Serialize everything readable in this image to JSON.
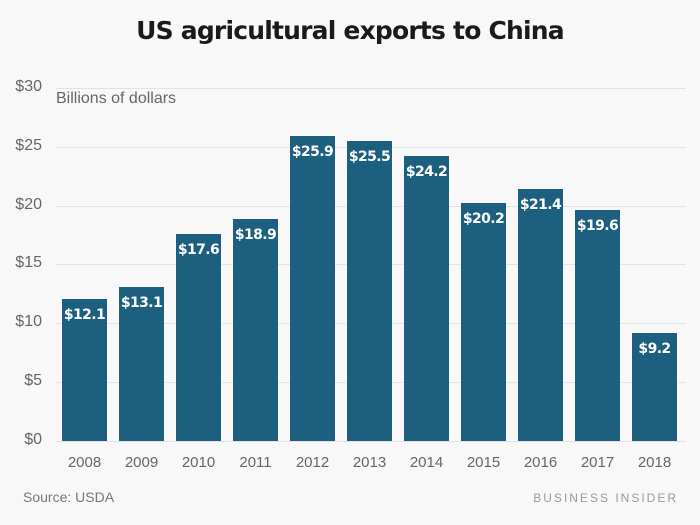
{
  "title": "US agricultural exports to China",
  "unit_label": "Billions of dollars",
  "source": "Source: USDA",
  "brand": "BUSINESS INSIDER",
  "colors": {
    "bar": "#1c5f7e",
    "background": "#f8f8f8",
    "grid": "#e3e3e3"
  },
  "y_ticks": [
    "$0",
    "$5",
    "$10",
    "$15",
    "$20",
    "$25",
    "$30"
  ],
  "bars": [
    {
      "year": "2008",
      "value": 12.1,
      "label": "$12.1"
    },
    {
      "year": "2009",
      "value": 13.1,
      "label": "$13.1"
    },
    {
      "year": "2010",
      "value": 17.6,
      "label": "$17.6"
    },
    {
      "year": "2011",
      "value": 18.9,
      "label": "$18.9"
    },
    {
      "year": "2012",
      "value": 25.9,
      "label": "$25.9"
    },
    {
      "year": "2013",
      "value": 25.5,
      "label": "$25.5"
    },
    {
      "year": "2014",
      "value": 24.2,
      "label": "$24.2"
    },
    {
      "year": "2015",
      "value": 20.2,
      "label": "$20.2"
    },
    {
      "year": "2016",
      "value": 21.4,
      "label": "$21.4"
    },
    {
      "year": "2017",
      "value": 19.6,
      "label": "$19.6"
    },
    {
      "year": "2018",
      "value": 9.2,
      "label": "$9.2"
    }
  ],
  "chart_data": {
    "type": "bar",
    "title": "US agricultural exports to China",
    "subtitle": "Billions of dollars",
    "categories": [
      "2008",
      "2009",
      "2010",
      "2011",
      "2012",
      "2013",
      "2014",
      "2015",
      "2016",
      "2017",
      "2018"
    ],
    "values": [
      12.1,
      13.1,
      17.6,
      18.9,
      25.9,
      25.5,
      24.2,
      20.2,
      21.4,
      19.6,
      9.2
    ],
    "xlabel": "",
    "ylabel": "Billions of dollars",
    "ylim": [
      0,
      30
    ],
    "yticks": [
      0,
      5,
      10,
      15,
      20,
      25,
      30
    ],
    "ytick_labels": [
      "$0",
      "$5",
      "$10",
      "$15",
      "$20",
      "$25",
      "$30"
    ],
    "data_labels": [
      "$12.1",
      "$13.1",
      "$17.6",
      "$18.9",
      "$25.9",
      "$25.5",
      "$24.2",
      "$20.2",
      "$21.4",
      "$19.6",
      "$9.2"
    ],
    "grid": true,
    "legend": null,
    "annotations": [
      "Source: USDA",
      "BUSINESS INSIDER"
    ]
  }
}
